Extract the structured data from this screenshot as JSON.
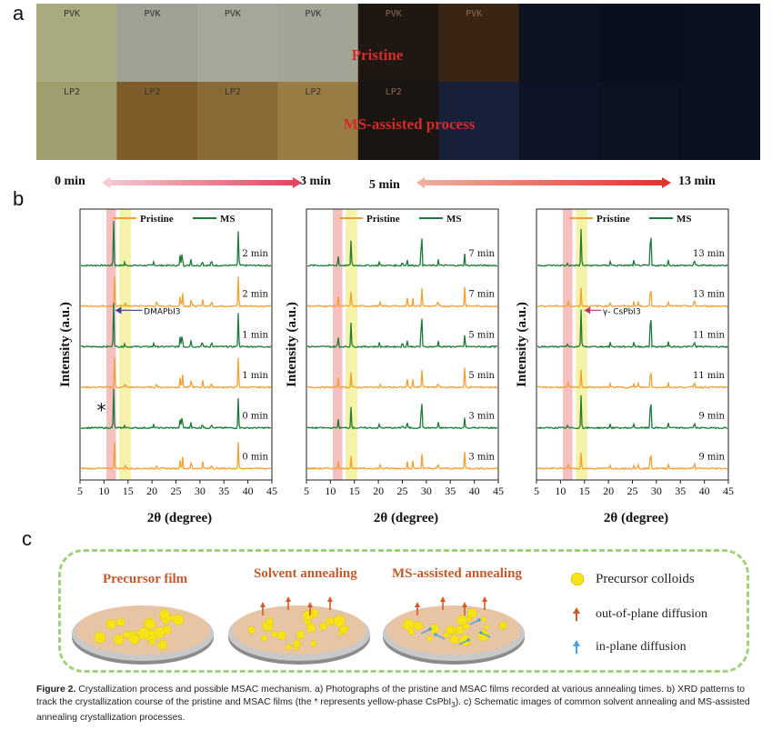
{
  "panel_labels": {
    "a": "a",
    "b": "b",
    "c": "c"
  },
  "panel_a": {
    "row1_labels": [
      "PVK",
      "PVK",
      "PVK",
      "PVK",
      "PVK",
      "PVK",
      "",
      "",
      ""
    ],
    "row2_labels": [
      "LP2",
      "LP2",
      "LP2",
      "LP2",
      "LP2",
      "",
      "",
      "",
      ""
    ],
    "pristine_label": "Pristine",
    "ms_label": "MS-assisted process",
    "time_start_1": "0 min",
    "time_end_1": "3 min",
    "time_start_2": "5 min",
    "time_end_2": "13 min",
    "colors": {
      "row1": [
        "#a9ab7e",
        "#9ea294",
        "#a6a79a",
        "#a2a596",
        "#1e1712",
        "#3a2414",
        "#0d1220",
        "#0a0f1d",
        "#0b1020"
      ],
      "row2": [
        "#9f9e6e",
        "#7d5c2a",
        "#8b6b35",
        "#9a7c45",
        "#1a1510",
        "#172038",
        "#0e1426",
        "#0c1222",
        "#0b1020"
      ]
    }
  },
  "panel_b": {
    "xlabel": "2θ (degree)",
    "ylabel": "Intensity (a.u.)",
    "x_ticks": [
      "5",
      "10",
      "15",
      "20",
      "25",
      "30",
      "35",
      "40",
      "45"
    ],
    "legend": {
      "pristine": "Pristine",
      "ms": "MS"
    },
    "colors": {
      "pristine": "#f3a033",
      "ms": "#1f7a3a",
      "band_red": "#f4b5b5",
      "band_yellow": "#f3f2a0"
    },
    "charts": [
      {
        "traces": [
          {
            "label": "2 min",
            "series": "ms"
          },
          {
            "label": "2 min",
            "series": "pristine"
          },
          {
            "label": "1 min",
            "series": "ms"
          },
          {
            "label": "1 min",
            "series": "pristine"
          },
          {
            "label": "0 min",
            "series": "ms"
          },
          {
            "label": "0 min",
            "series": "pristine"
          }
        ],
        "annotation": "DMAPbI3",
        "star": "*"
      },
      {
        "traces": [
          {
            "label": "7 min",
            "series": "ms"
          },
          {
            "label": "7 min",
            "series": "pristine"
          },
          {
            "label": "5 min",
            "series": "ms"
          },
          {
            "label": "5 min",
            "series": "pristine"
          },
          {
            "label": "3 min",
            "series": "ms"
          },
          {
            "label": "3 min",
            "series": "pristine"
          }
        ]
      },
      {
        "traces": [
          {
            "label": "13 min",
            "series": "ms"
          },
          {
            "label": "13 min",
            "series": "pristine"
          },
          {
            "label": "11 min",
            "series": "ms"
          },
          {
            "label": "11 min",
            "series": "pristine"
          },
          {
            "label": "9 min",
            "series": "ms"
          },
          {
            "label": "9 min",
            "series": "pristine"
          }
        ],
        "annotation": "γ- CsPbI3"
      }
    ]
  },
  "panel_c": {
    "titles": [
      "Precursor film",
      "Solvent annealing",
      "MS-assisted annealing"
    ],
    "legend": [
      "Precursor colloids",
      "out-of-plane diffusion",
      "in-plane diffusion"
    ]
  },
  "caption": {
    "figure": "Figure 2.",
    "text": " Crystallization process and possible MSAC mechanism. a) Photographs of the pristine and MSAC films recorded at various annealing times. b) XRD patterns to track the crystallization course of the pristine and MSAC films (the * represents yellow-phase CsPbI",
    "sub": "3",
    "text2": "). c) Schematic images of common solvent annealing and MS-assisted annealing crystallization processes."
  }
}
